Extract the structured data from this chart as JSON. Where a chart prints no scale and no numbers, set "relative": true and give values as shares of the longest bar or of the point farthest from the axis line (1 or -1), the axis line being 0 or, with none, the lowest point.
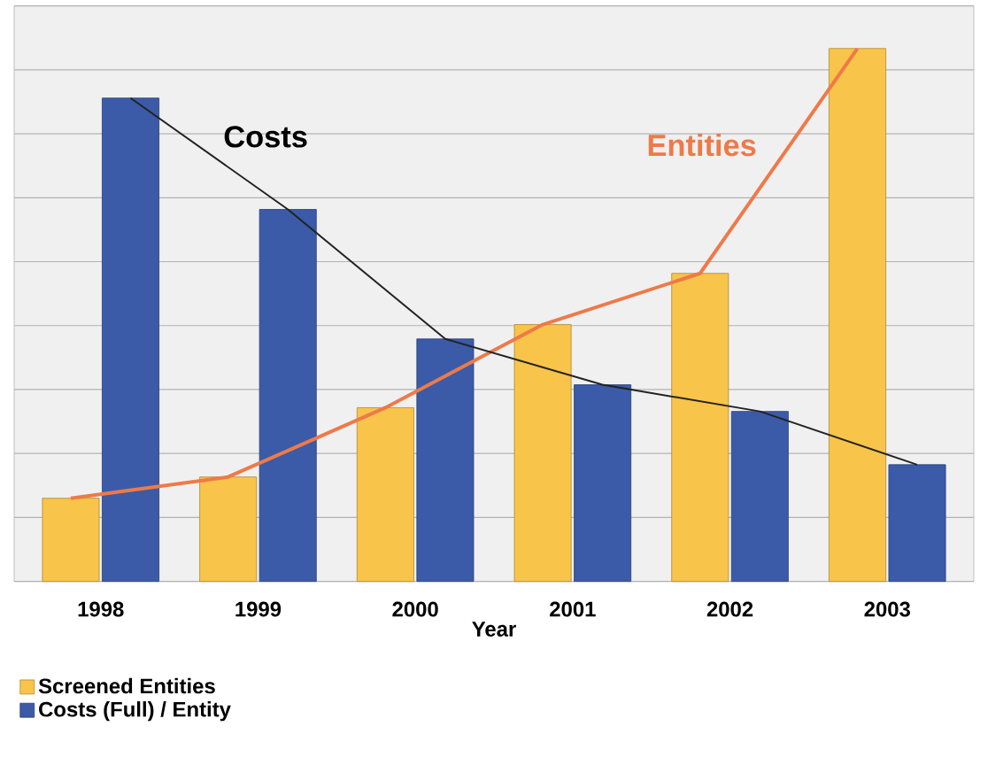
{
  "chart_data": {
    "type": "bar",
    "relative": true,
    "xlabel": "Year",
    "categories": [
      "1998",
      "1999",
      "2000",
      "2001",
      "2002",
      "2003"
    ],
    "series": [
      {
        "name": "Screened Entities",
        "color": "#f8c44a",
        "values": [
          0.156,
          0.196,
          0.326,
          0.482,
          0.578,
          1
        ]
      },
      {
        "name": "Costs (Full) / Entity",
        "color": "#3b5ba8",
        "values": [
          0.907,
          0.698,
          0.455,
          0.369,
          0.319,
          0.219
        ]
      },
      {
        "name": "Entities",
        "type": "line",
        "color": "#ee7a48",
        "values": [
          0.156,
          0.196,
          0.326,
          0.482,
          0.578,
          1
        ]
      },
      {
        "name": "Costs",
        "type": "line",
        "color": "#222222",
        "values": [
          0.907,
          0.698,
          0.455,
          0.369,
          0.319,
          0.219
        ]
      }
    ],
    "grid": "y",
    "legend": "bottom left"
  }
}
